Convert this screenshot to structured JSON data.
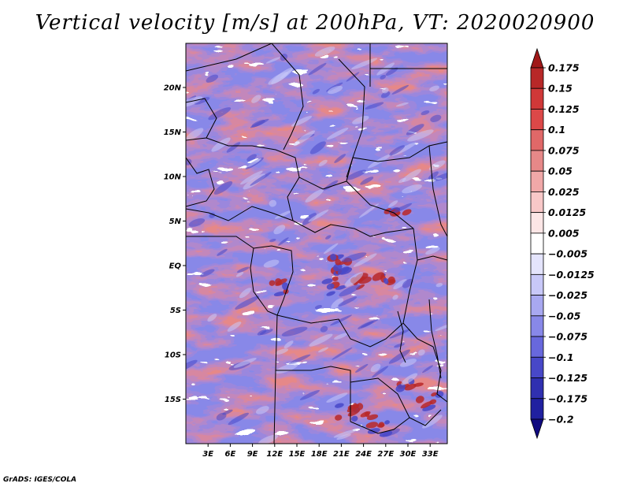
{
  "title": "Vertical velocity [m/s] at 200hPa, VT: 2020020900",
  "credit": "GrADS: IGES/COLA",
  "map": {
    "lat_labels": [
      {
        "label": "20N",
        "lat": 20
      },
      {
        "label": "15N",
        "lat": 15
      },
      {
        "label": "10N",
        "lat": 10
      },
      {
        "label": "5N",
        "lat": 5
      },
      {
        "label": "EQ",
        "lat": 0
      },
      {
        "label": "5S",
        "lat": -5
      },
      {
        "label": "10S",
        "lat": -10
      },
      {
        "label": "15S",
        "lat": -15
      }
    ],
    "lon_labels": [
      {
        "label": "3E",
        "lon": 3
      },
      {
        "label": "6E",
        "lon": 6
      },
      {
        "label": "9E",
        "lon": 9
      },
      {
        "label": "12E",
        "lon": 12
      },
      {
        "label": "15E",
        "lon": 15
      },
      {
        "label": "18E",
        "lon": 18
      },
      {
        "label": "21E",
        "lon": 21
      },
      {
        "label": "24E",
        "lon": 24
      },
      {
        "label": "27E",
        "lon": 27
      },
      {
        "label": "30E",
        "lon": 30
      },
      {
        "label": "33E",
        "lon": 33
      }
    ],
    "lon_range": [
      0,
      35
    ],
    "lat_range": [
      -20,
      25
    ]
  },
  "colorbar": {
    "levels": [
      "0.175",
      "0.15",
      "0.125",
      "0.1",
      "0.075",
      "0.05",
      "0.025",
      "0.0125",
      "0.005",
      "-0.005",
      "-0.0125",
      "-0.025",
      "-0.05",
      "-0.075",
      "-0.1",
      "-0.125",
      "-0.175",
      "-0.2"
    ],
    "colors": [
      "#a01818",
      "#b82828",
      "#d03838",
      "#dc4848",
      "#e06868",
      "#e68888",
      "#f0a8a8",
      "#f8c8c8",
      "#fce6e6",
      "#ffffff",
      "#e4e4fc",
      "#c8c8f8",
      "#a8a8f0",
      "#8888e8",
      "#6868dc",
      "#4848c8",
      "#3030b0",
      "#2020a0",
      "#100a80"
    ]
  },
  "field_palette": {
    "strong_pos": "#b82828",
    "pos": "#e68888",
    "weak_pos": "#f8c8c8",
    "neutral": "#ffffff",
    "weak_neg": "#c8c8f8",
    "neg": "#8888e8",
    "strong_neg": "#4848c8"
  }
}
